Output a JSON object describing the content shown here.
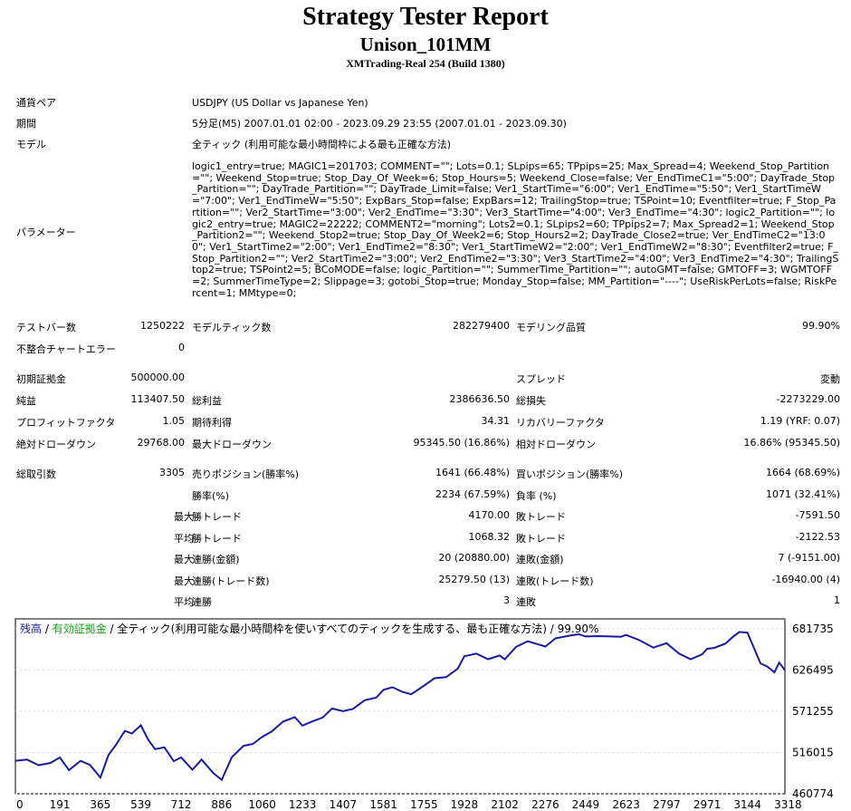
{
  "header": {
    "title": "Strategy Tester Report",
    "ea_name": "Unison_101MM",
    "server": "XMTrading-Real 254 (Build 1380)"
  },
  "info": {
    "symbol_label": "通貨ペア",
    "symbol_value": "USDJPY (US Dollar vs Japanese Yen)",
    "period_label": "期間",
    "period_value": "5分足(M5) 2007.01.01 02:00 - 2023.09.29 23:55 (2007.01.01 - 2023.09.30)",
    "model_label": "モデル",
    "model_value": "全ティック (利用可能な最小時間枠による最も正確な方法)",
    "params_label": "パラメーター",
    "params_value": "logic1_entry=true; MAGIC1=201703; COMMENT=\"\"; Lots=0.1; SLpips=65; TPpips=25; Max_Spread=4; Weekend_Stop_Partition=\"\"; Weekend_Stop=true; Stop_Day_Of_Week=6; Stop_Hours=5; Weekend_Close=false; Ver_EndTimeC1=\"5:00\"; DayTrade_Stop_Partition=\"\"; DayTrade_Partition=\"\"; DayTrade_Limit=false; Ver1_StartTime=\"6:00\"; Ver1_EndTime=\"5:50\"; Ver1_StartTimeW=\"7:00\"; Ver1_EndTimeW=\"5:50\"; ExpBars_Stop=false; ExpBars=12; TrailingStop=true; TSPoint=10; Eventfilter=true; F_Stop_Partition=\"\"; Ver2_StartTime=\"3:00\"; Ver2_EndTime=\"3:30\"; Ver3_StartTime=\"4:00\"; Ver3_EndTime=\"4:30\"; logic2_Partition=\"\"; logic2_entry=true; MAGIC2=22222; COMMENT2=\"morning\"; Lots2=0.1; SLpips2=60; TPpips2=7; Max_Spread2=1; Weekend_Stop_Partition2=\"\"; Weekend_Stop2=true; Stop_Day_Of_Week2=6; Stop_Hours2=2; DayTrade_Close2=true; Ver_EndTimeC2=\"13:00\"; Ver1_StartTime2=\"2:00\"; Ver1_EndTime2=\"8:30\"; Ver1_StartTimeW2=\"2:00\"; Ver1_EndTimeW2=\"8:30\"; Eventfilter2=true; F_Stop_Partition2=\"\"; Ver2_StartTime2=\"3:00\"; Ver2_EndTime2=\"3:30\"; Ver3_StartTime2=\"4:00\"; Ver3_EndTime2=\"4:30\"; TrailingStop2=true; TSPoint2=5; BCoMODE=false; logic_Partition=\"\"; SummerTime_Partition=\"\"; autoGMT=false; GMTOFF=3; WGMTOFF=2; SummerTimeType=2; Slippage=3; gotobi_Stop=true; Monday_Stop=false; MM_Partition=\"----\"; UseRiskPerLots=false; RiskPercent=1; MMtype=0;"
  },
  "stats": {
    "r1": {
      "l1": "テストバー数",
      "v1": "1250222",
      "l2": "モデルティック数",
      "v2": "282279400",
      "l3": "モデリング品質",
      "v3": "99.90%"
    },
    "r2": {
      "l1": "不整合チャートエラー",
      "v1": "0"
    },
    "r3": {
      "l1": "初期証拠金",
      "v1": "500000.00",
      "l3": "スプレッド",
      "v3": "変動"
    },
    "r4": {
      "l1": "純益",
      "v1": "113407.50",
      "l2": "総利益",
      "v2": "2386636.50",
      "l3": "総損失",
      "v3": "-2273229.00"
    },
    "r5": {
      "l1": "プロフィットファクタ",
      "v1": "1.05",
      "l2": "期待利得",
      "v2": "34.31",
      "l3": "リカバリーファクタ",
      "v3": "1.19 (YRF: 0.07)"
    },
    "r6": {
      "l1": "絶対ドローダウン",
      "v1": "29768.00",
      "l2": "最大ドローダウン",
      "v2": "95345.50 (16.86%)",
      "l3": "相対ドローダウン",
      "v3": "16.86% (95345.50)"
    },
    "r7": {
      "l1": "総取引数",
      "v1": "3305",
      "l2": "売りポジション(勝率%)",
      "v2": "1641 (66.48%)",
      "l3": "買いポジション(勝率%)",
      "v3": "1664 (68.69%)"
    },
    "r8": {
      "l2": "勝率(%)",
      "v2": "2234 (67.59%)",
      "l3": "負率 (%)",
      "v3": "1071 (32.41%)"
    },
    "r9": {
      "pre": "最大",
      "l2": "勝トレード",
      "v2": "4170.00",
      "l3": "敗トレード",
      "v3": "-7591.50"
    },
    "r10": {
      "pre": "平均",
      "l2": "勝トレード",
      "v2": "1068.32",
      "l3": "敗トレード",
      "v3": "-2122.53"
    },
    "r11": {
      "pre": "最大",
      "l2": "連勝(金額)",
      "v2": "20 (20880.00)",
      "l3": "連敗(金額)",
      "v3": "7 (-9151.00)"
    },
    "r12": {
      "pre": "最大",
      "l2": "連勝(トレード数)",
      "v2": "25279.50 (13)",
      "l3": "連敗(トレード数)",
      "v3": "-16940.00 (4)"
    },
    "r13": {
      "pre": "平均",
      "l2": "連勝",
      "v2": "3",
      "l3": "連敗",
      "v3": "1"
    }
  },
  "chart_data": {
    "type": "line",
    "legend": {
      "balance": "残高",
      "sep1": " / ",
      "equity": "有効証拠金",
      "sep2": " / ",
      "model": "全ティック(利用可能な最小時間枠を使いすべてのティックを生成する、最も正確な方法) / 99.90%"
    },
    "colors": {
      "balance": "#1a1aa0",
      "equity": "#1aa01a",
      "grid": "#d8d8d8"
    },
    "x_ticks": [
      0,
      191,
      365,
      539,
      712,
      886,
      1060,
      1233,
      1407,
      1581,
      1755,
      1928,
      2102,
      2276,
      2449,
      2623,
      2797,
      2971,
      3144,
      3318
    ],
    "y_ticks": [
      681735,
      626495,
      571255,
      516015,
      460774
    ],
    "xlim": [
      0,
      3305
    ],
    "ylim": [
      460774,
      695000
    ],
    "series": [
      {
        "name": "残高",
        "x": [
          0,
          50,
          100,
          150,
          191,
          230,
          280,
          320,
          365,
          400,
          430,
          470,
          500,
          539,
          570,
          600,
          640,
          680,
          712,
          760,
          800,
          850,
          886,
          930,
          980,
          1020,
          1060,
          1100,
          1150,
          1200,
          1233,
          1270,
          1320,
          1360,
          1407,
          1450,
          1500,
          1550,
          1581,
          1620,
          1660,
          1700,
          1755,
          1800,
          1850,
          1900,
          1928,
          1980,
          2030,
          2080,
          2102,
          2150,
          2200,
          2250,
          2276,
          2320,
          2380,
          2420,
          2449,
          2500,
          2560,
          2600,
          2623,
          2680,
          2740,
          2797,
          2850,
          2900,
          2950,
          2971,
          3000,
          3050,
          3080,
          3110,
          3144,
          3170,
          3200,
          3230,
          3260,
          3280,
          3300,
          3305
        ],
        "values": [
          505000,
          506500,
          499000,
          502000,
          509500,
          492500,
          505000,
          499500,
          482500,
          513000,
          525500,
          545000,
          541500,
          552500,
          533500,
          520500,
          523000,
          504500,
          509500,
          493000,
          506500,
          488500,
          479500,
          510000,
          525000,
          527500,
          537000,
          544000,
          557500,
          563500,
          552000,
          557000,
          563000,
          575000,
          571500,
          574500,
          586000,
          589500,
          600000,
          603500,
          597500,
          594000,
          605500,
          615500,
          617000,
          628500,
          645000,
          648500,
          641000,
          646000,
          641000,
          657500,
          665000,
          660500,
          658000,
          669000,
          672500,
          674500,
          671500,
          672000,
          671500,
          671000,
          673500,
          666500,
          656500,
          662500,
          648500,
          641000,
          647500,
          655000,
          656000,
          662000,
          670500,
          677500,
          676500,
          657500,
          635500,
          631000,
          623500,
          636500,
          628500,
          626000
        ]
      }
    ]
  }
}
